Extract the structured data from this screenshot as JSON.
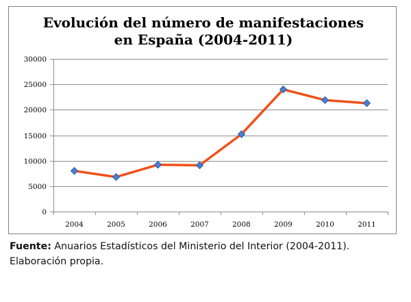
{
  "chart_data": {
    "type": "line",
    "title_lines": [
      "Evolución del número de manifestaciones",
      "en España (2004-2011)"
    ],
    "categories": [
      "2004",
      "2005",
      "2006",
      "2007",
      "2008",
      "2009",
      "2010",
      "2011"
    ],
    "series": [
      {
        "values": [
          8000,
          6800,
          9200,
          9100,
          15200,
          24000,
          21900,
          21300
        ],
        "line_color": "#f0501a",
        "marker_color": "#4a7fd4"
      }
    ],
    "ylim": [
      0,
      30000
    ],
    "yticks": [
      0,
      5000,
      10000,
      15000,
      20000,
      25000,
      30000
    ],
    "ytick_labels": [
      "0",
      "5000",
      "10000",
      "15000",
      "20000",
      "25000",
      "30000"
    ],
    "grid": true,
    "legend": false,
    "xlabel": "",
    "ylabel": ""
  },
  "caption": {
    "bold_label": "Fuente:",
    "text": " Anuarios Estadísticos del Ministerio del Interior (2004-2011). Elaboración propia."
  }
}
